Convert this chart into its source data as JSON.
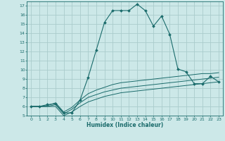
{
  "xlabel": "Humidex (Indice chaleur)",
  "ylabel": "",
  "xlim": [
    -0.5,
    23.5
  ],
  "ylim": [
    5,
    17.5
  ],
  "yticks": [
    5,
    6,
    7,
    8,
    9,
    10,
    11,
    12,
    13,
    14,
    15,
    16,
    17
  ],
  "xticks": [
    0,
    1,
    2,
    3,
    4,
    5,
    6,
    7,
    8,
    9,
    10,
    11,
    12,
    13,
    14,
    15,
    16,
    17,
    18,
    19,
    20,
    21,
    22,
    23
  ],
  "bg_color": "#cce8e8",
  "grid_color": "#aacccc",
  "line_color": "#1a6b6b",
  "lines": [
    {
      "x": [
        0,
        1,
        2,
        3,
        4,
        5,
        6,
        7,
        8,
        9,
        10,
        11,
        12,
        13,
        14,
        15,
        16,
        17,
        18,
        19,
        20,
        21,
        22,
        23
      ],
      "y": [
        6,
        6,
        6.2,
        6.3,
        5.3,
        5.3,
        6.7,
        9.2,
        12.2,
        15.2,
        16.5,
        16.5,
        16.5,
        17.2,
        16.5,
        14.8,
        15.9,
        13.9,
        10.1,
        9.8,
        8.5,
        8.5,
        9.3,
        8.7
      ],
      "has_markers": true
    },
    {
      "x": [
        0,
        1,
        2,
        3,
        4,
        5,
        6,
        7,
        8,
        9,
        10,
        11,
        12,
        13,
        14,
        15,
        16,
        17,
        18,
        19,
        20,
        21,
        22,
        23
      ],
      "y": [
        6.0,
        6.0,
        6.1,
        6.4,
        5.4,
        5.9,
        6.7,
        7.4,
        7.8,
        8.1,
        8.4,
        8.6,
        8.7,
        8.8,
        8.9,
        9.0,
        9.1,
        9.2,
        9.3,
        9.4,
        9.5,
        9.6,
        9.6,
        9.7
      ],
      "has_markers": false
    },
    {
      "x": [
        0,
        1,
        2,
        3,
        4,
        5,
        6,
        7,
        8,
        9,
        10,
        11,
        12,
        13,
        14,
        15,
        16,
        17,
        18,
        19,
        20,
        21,
        22,
        23
      ],
      "y": [
        6.0,
        6.0,
        6.0,
        6.2,
        5.2,
        5.7,
        6.4,
        7.0,
        7.3,
        7.6,
        7.8,
        8.0,
        8.1,
        8.2,
        8.3,
        8.4,
        8.5,
        8.6,
        8.7,
        8.8,
        8.9,
        9.0,
        9.1,
        9.2
      ],
      "has_markers": false
    },
    {
      "x": [
        0,
        1,
        2,
        3,
        4,
        5,
        6,
        7,
        8,
        9,
        10,
        11,
        12,
        13,
        14,
        15,
        16,
        17,
        18,
        19,
        20,
        21,
        22,
        23
      ],
      "y": [
        6.0,
        6.0,
        6.0,
        6.0,
        5.0,
        5.4,
        6.0,
        6.5,
        6.8,
        7.1,
        7.3,
        7.5,
        7.6,
        7.7,
        7.8,
        7.9,
        8.0,
        8.1,
        8.2,
        8.3,
        8.4,
        8.5,
        8.6,
        8.7
      ],
      "has_markers": false
    }
  ]
}
